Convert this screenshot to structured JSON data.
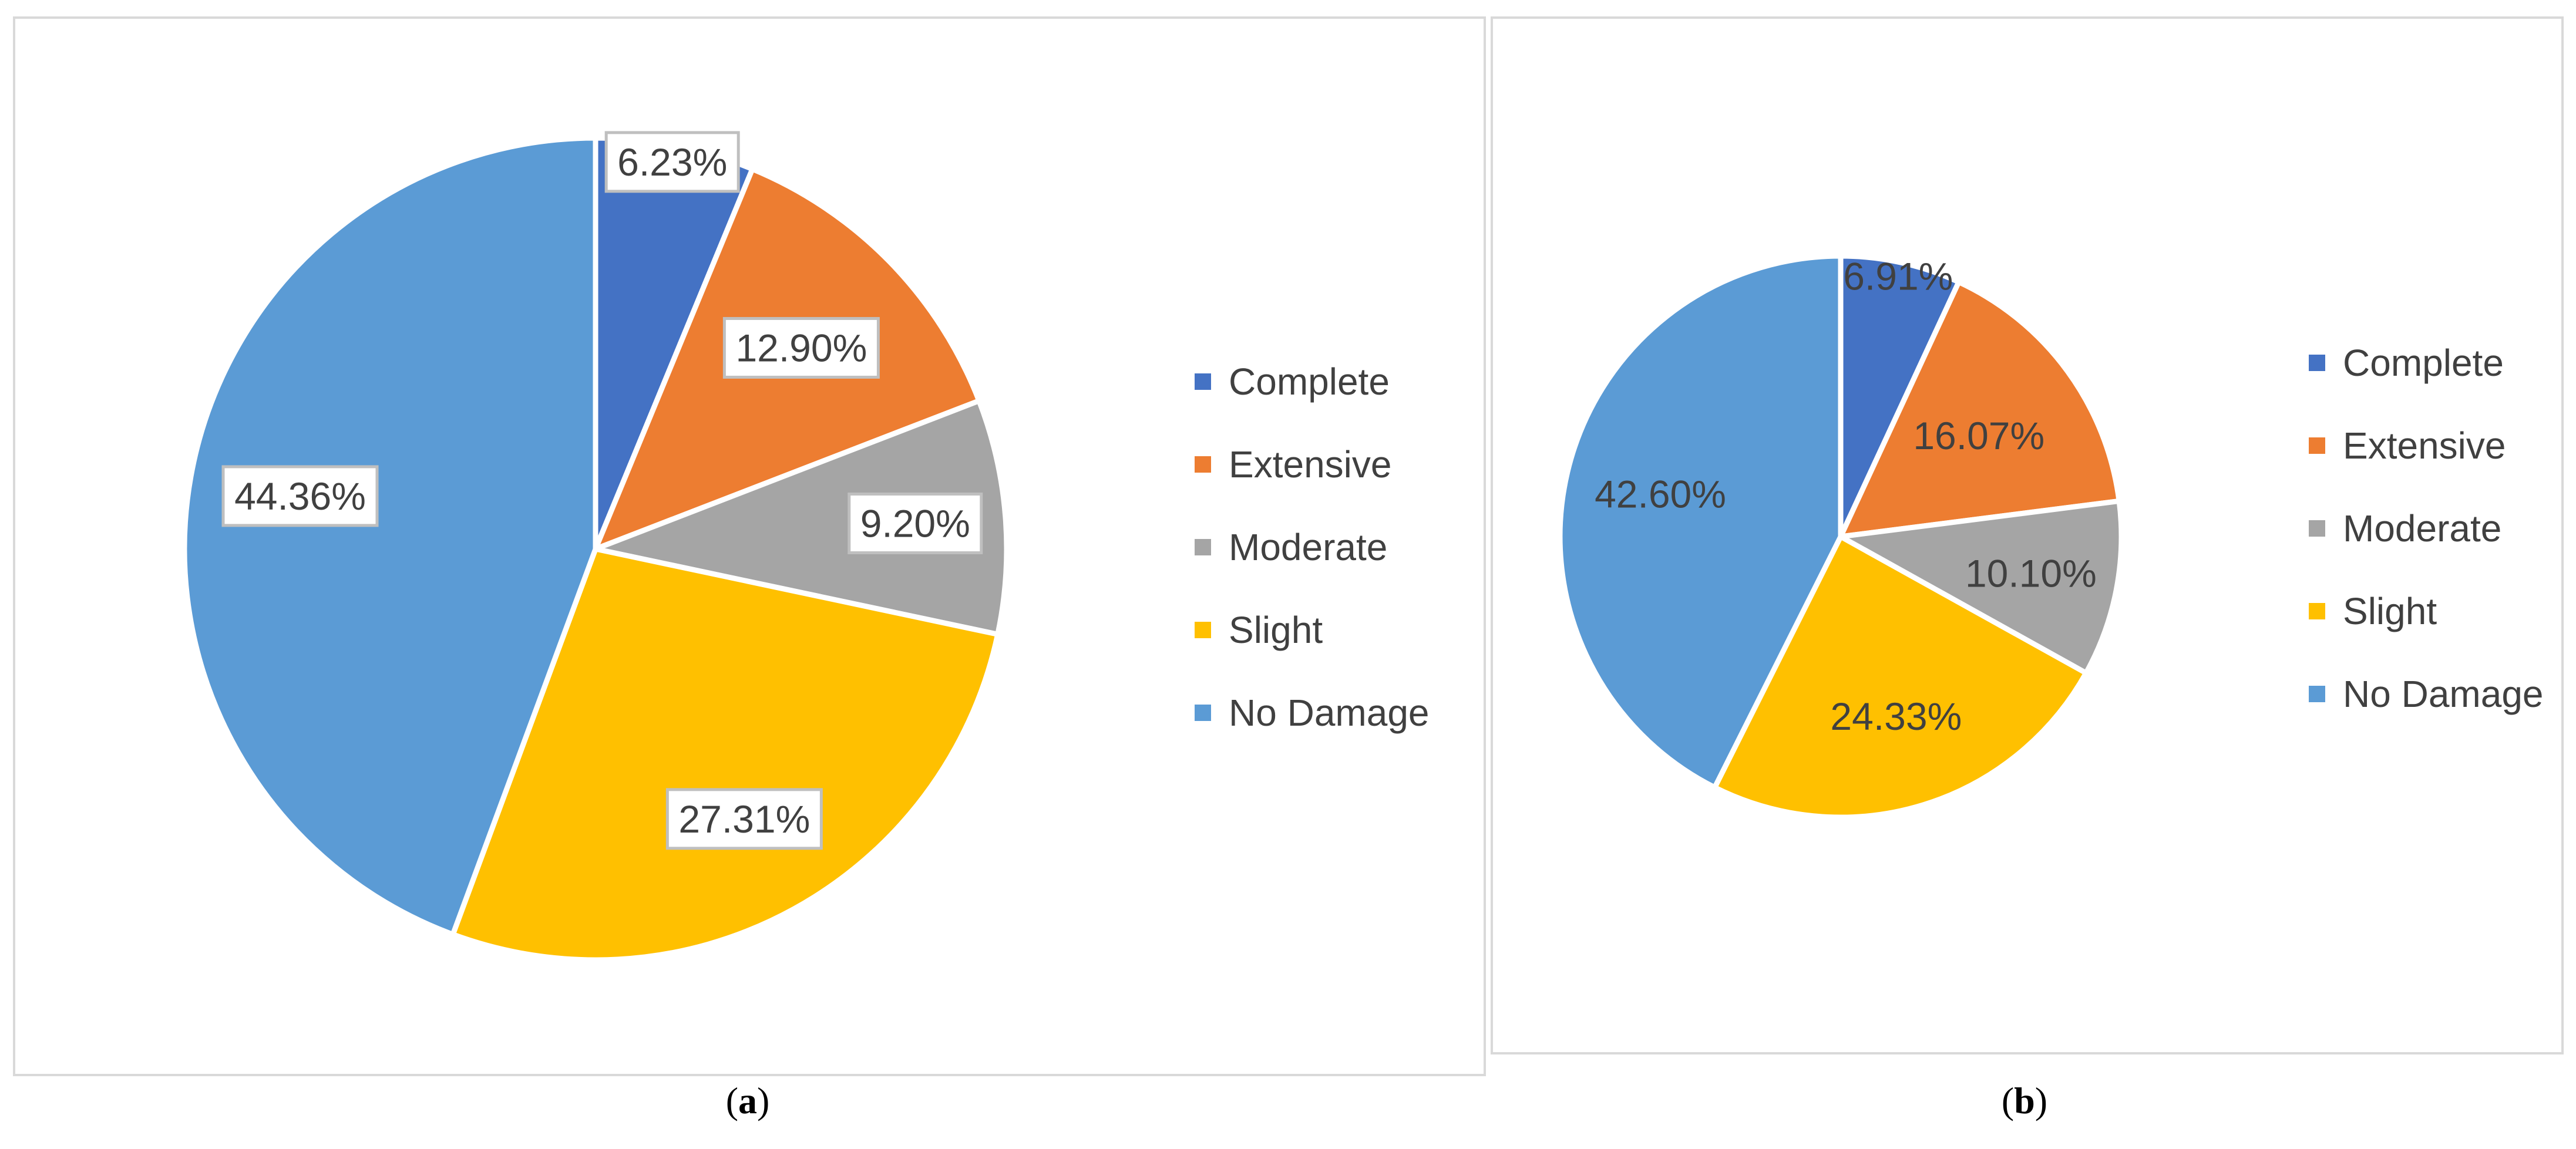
{
  "colors": {
    "Complete": "#4472c4",
    "Extensive": "#ed7d31",
    "Moderate": "#a5a5a5",
    "Slight": "#ffc000",
    "No Damage": "#5b9bd5"
  },
  "chart_data": [
    {
      "type": "pie",
      "panel_caption": "a",
      "categories": [
        "Complete",
        "Extensive",
        "Moderate",
        "Slight",
        "No Damage"
      ],
      "values": [
        6.23,
        12.9,
        9.2,
        27.31,
        44.36
      ],
      "data_labels": [
        "6.23%",
        "12.90%",
        "9.20%",
        "27.31%",
        "44.36%"
      ],
      "legend": [
        "Complete",
        "Extensive",
        "Moderate",
        "Slight",
        "No Damage"
      ],
      "legend_position": "right",
      "data_label_style": "callout"
    },
    {
      "type": "pie",
      "panel_caption": "b",
      "categories": [
        "Complete",
        "Extensive",
        "Moderate",
        "Slight",
        "No Damage"
      ],
      "values": [
        6.91,
        16.07,
        10.1,
        24.33,
        42.6
      ],
      "data_labels": [
        "6.91%",
        "16.07%",
        "10.10%",
        "24.33%",
        "42.60%"
      ],
      "legend": [
        "Complete",
        "Extensive",
        "Moderate",
        "Slight",
        "No Damage"
      ],
      "legend_position": "right",
      "data_label_style": "plain"
    }
  ]
}
